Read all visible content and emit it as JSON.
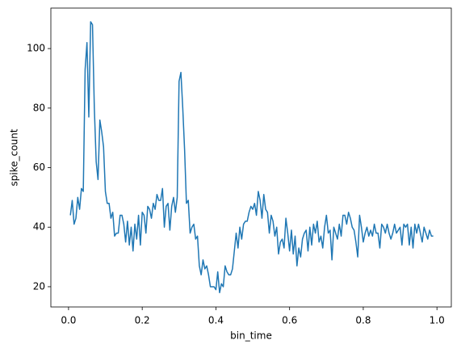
{
  "chart_data": {
    "type": "line",
    "xlabel": "bin_time",
    "ylabel": "spike_count",
    "x": [
      0.005,
      0.01,
      0.015,
      0.02,
      0.025,
      0.03,
      0.035,
      0.04,
      0.045,
      0.05,
      0.055,
      0.06,
      0.065,
      0.07,
      0.075,
      0.08,
      0.085,
      0.09,
      0.095,
      0.1,
      0.105,
      0.11,
      0.115,
      0.12,
      0.125,
      0.13,
      0.135,
      0.14,
      0.145,
      0.15,
      0.155,
      0.16,
      0.165,
      0.17,
      0.175,
      0.18,
      0.185,
      0.19,
      0.195,
      0.2,
      0.205,
      0.21,
      0.215,
      0.22,
      0.225,
      0.23,
      0.235,
      0.24,
      0.245,
      0.25,
      0.255,
      0.26,
      0.265,
      0.27,
      0.275,
      0.28,
      0.285,
      0.29,
      0.295,
      0.3,
      0.305,
      0.31,
      0.315,
      0.32,
      0.325,
      0.33,
      0.335,
      0.34,
      0.345,
      0.35,
      0.355,
      0.36,
      0.365,
      0.37,
      0.375,
      0.38,
      0.385,
      0.39,
      0.395,
      0.4,
      0.405,
      0.41,
      0.415,
      0.42,
      0.425,
      0.43,
      0.435,
      0.44,
      0.445,
      0.45,
      0.455,
      0.46,
      0.465,
      0.47,
      0.475,
      0.48,
      0.485,
      0.49,
      0.495,
      0.5,
      0.505,
      0.51,
      0.515,
      0.52,
      0.525,
      0.53,
      0.535,
      0.54,
      0.545,
      0.55,
      0.555,
      0.56,
      0.565,
      0.57,
      0.575,
      0.58,
      0.585,
      0.59,
      0.595,
      0.6,
      0.605,
      0.61,
      0.615,
      0.62,
      0.625,
      0.63,
      0.635,
      0.64,
      0.645,
      0.65,
      0.655,
      0.66,
      0.665,
      0.67,
      0.675,
      0.68,
      0.685,
      0.69,
      0.695,
      0.7,
      0.705,
      0.71,
      0.715,
      0.72,
      0.725,
      0.73,
      0.735,
      0.74,
      0.745,
      0.75,
      0.755,
      0.76,
      0.765,
      0.77,
      0.775,
      0.78,
      0.785,
      0.79,
      0.795,
      0.8,
      0.805,
      0.81,
      0.815,
      0.82,
      0.825,
      0.83,
      0.835,
      0.84,
      0.845,
      0.85,
      0.855,
      0.86,
      0.865,
      0.87,
      0.875,
      0.88,
      0.885,
      0.89,
      0.895,
      0.9,
      0.905,
      0.91,
      0.915,
      0.92,
      0.925,
      0.93,
      0.935,
      0.94,
      0.945,
      0.95,
      0.955,
      0.96,
      0.965,
      0.97,
      0.975,
      0.98,
      0.985,
      0.99
    ],
    "series": [
      {
        "color": "#1f77b4",
        "values": [
          44,
          49,
          41,
          43,
          50,
          46,
          53,
          52,
          93,
          102,
          77,
          109,
          108,
          80,
          62,
          56,
          76,
          72,
          67,
          52,
          48,
          48,
          43,
          45,
          37,
          38,
          38,
          44,
          44,
          41,
          35,
          42,
          34,
          40,
          32,
          41,
          36,
          44,
          34,
          45,
          44,
          38,
          47,
          46,
          43,
          48,
          46,
          51,
          49,
          49,
          53,
          40,
          47,
          48,
          39,
          47,
          50,
          45,
          50,
          89,
          92,
          80,
          66,
          48,
          49,
          38,
          40,
          41,
          36,
          37,
          27,
          24,
          29,
          26,
          27,
          24,
          20,
          20,
          20,
          19,
          25,
          18,
          21,
          20,
          27,
          25,
          24,
          24,
          26,
          32,
          38,
          33,
          40,
          36,
          41,
          42,
          42,
          45,
          47,
          46,
          48,
          44,
          52,
          49,
          43,
          51,
          46,
          45,
          38,
          44,
          42,
          37,
          40,
          31,
          35,
          36,
          33,
          43,
          38,
          32,
          39,
          31,
          37,
          27,
          33,
          30,
          36,
          38,
          39,
          32,
          40,
          34,
          41,
          38,
          42,
          35,
          37,
          33,
          40,
          44,
          38,
          39,
          29,
          40,
          38,
          36,
          41,
          37,
          44,
          44,
          41,
          45,
          43,
          40,
          39,
          35,
          30,
          44,
          40,
          35,
          38,
          40,
          37,
          39,
          37,
          41,
          38,
          38,
          33,
          41,
          40,
          38,
          41,
          38,
          36,
          38,
          41,
          38,
          39,
          40,
          34,
          41,
          40,
          41,
          34,
          40,
          33,
          41,
          38,
          41,
          38,
          35,
          40,
          38,
          36,
          39,
          37,
          37
        ]
      }
    ],
    "xlim": [
      -0.048,
      1.039
    ],
    "ylim": [
      13.2,
      113.6
    ],
    "xticks": [
      {
        "value": 0,
        "label": "0.0"
      },
      0.2,
      0.4,
      0.6,
      0.8,
      {
        "value": 1,
        "label": "1.0"
      }
    ],
    "yticks": [
      20,
      40,
      60,
      80,
      100
    ]
  }
}
